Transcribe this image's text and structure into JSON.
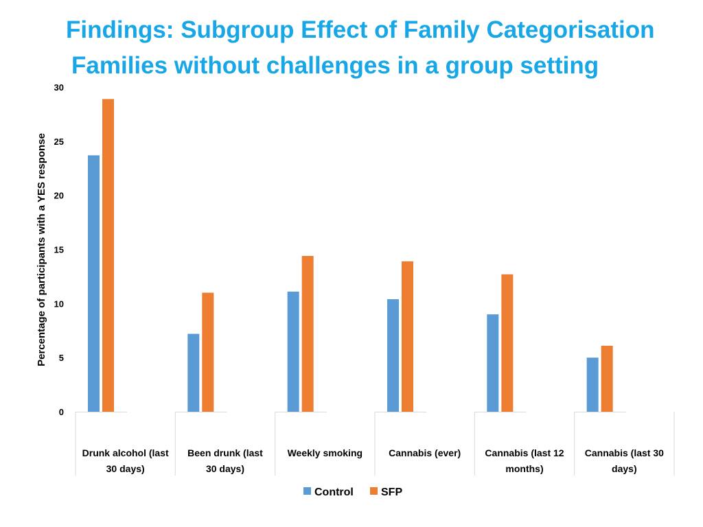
{
  "title_line1": "Findings: Subgroup Effect of Family Categorisation",
  "title_line2": "Families without challenges in a group setting",
  "chart_data": {
    "type": "bar",
    "title": "Families without challenges in a group setting",
    "ylabel": "Percentage of participants with a YES response",
    "xlabel": "",
    "ylim": [
      0,
      30
    ],
    "yticks": [
      0,
      5,
      10,
      15,
      20,
      25,
      30
    ],
    "categories": [
      [
        "Drunk alcohol (last",
        "30 days)"
      ],
      [
        "Been drunk (last",
        "30 days)"
      ],
      [
        "Weekly smoking"
      ],
      [
        "Cannabis (ever)"
      ],
      [
        "Cannabis (last 12",
        "months)"
      ],
      [
        "Cannabis (last 30",
        "days)"
      ]
    ],
    "series": [
      {
        "name": "Control",
        "color": "#5b9bd5",
        "values": [
          23.7,
          7.2,
          11.1,
          10.4,
          9.0,
          5.0
        ]
      },
      {
        "name": "SFP",
        "color": "#ed7d31",
        "values": [
          28.9,
          11.0,
          14.4,
          13.9,
          12.7,
          6.1
        ]
      }
    ],
    "legend": "bottom-center",
    "grid": false
  }
}
